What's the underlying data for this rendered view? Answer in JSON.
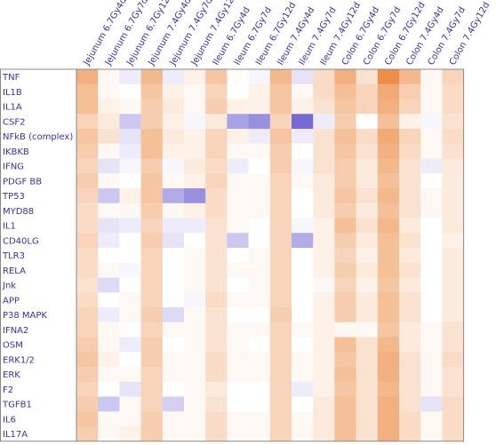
{
  "chart_data": {
    "type": "heatmap",
    "columns": [
      "Jejunum 6.7Gy4d",
      "Jejunum 6.7Gy7d",
      "Jejunum 6.7Gy12d",
      "Jejunum 7.4Gy4d",
      "Jejunum 7.4Gy7d",
      "Jejunum 7.4Gy12d",
      "Ileum 6.7Gy4d",
      "Ileum 6.7Gy7d",
      "Ileum 6.7Gy12d",
      "Ileum 7.4Gy4d",
      "Ileum 7.4Gy7d",
      "Ileum 7.4Gy12d",
      "Colon 6.7Gy4d",
      "Colon 6.7Gy7d",
      "Colon 6.7Gy12d",
      "Colon 7.4Gy4d",
      "Colon 7.4Gy7d",
      "Colon 7.4Gy12d"
    ],
    "rows": [
      "TNF",
      "IL1B",
      "IL1A",
      "CSF2",
      "NFkB (complex)",
      "IKBKB",
      "IFNG",
      "PDGF BB",
      "TP53",
      "MYD88",
      "IL1",
      "CD40LG",
      "TLR3",
      "RELA",
      "Jnk",
      "APP",
      "P38 MAPK",
      "IFNA2",
      "OSM",
      "ERK1/2",
      "ERK",
      "F2",
      "TGFB1",
      "IL6",
      "IL17A"
    ],
    "values": [
      [
        0.55,
        0.05,
        -0.1,
        0.5,
        -0.1,
        0.1,
        0.4,
        0.02,
        -0.05,
        0.5,
        -0.15,
        0.25,
        0.55,
        0.2,
        0.8,
        0.5,
        0.05,
        0.3
      ],
      [
        0.45,
        0.05,
        0,
        0.4,
        0.1,
        0.05,
        0.3,
        0,
        0.1,
        0.4,
        0.05,
        0.25,
        0.45,
        0.3,
        0.6,
        0.35,
        0.05,
        0.25
      ],
      [
        0.45,
        0.1,
        0.05,
        0.35,
        0.15,
        0.05,
        0.35,
        0.1,
        0.1,
        0.4,
        0.1,
        0.2,
        0.4,
        0.3,
        0.55,
        0.3,
        0.05,
        0.25
      ],
      [
        0.3,
        0.15,
        -0.3,
        0.35,
        0.1,
        -0.05,
        0.15,
        -0.5,
        -0.6,
        0.3,
        -0.8,
        -0.1,
        0.35,
        0,
        0.45,
        0.1,
        -0.05,
        0.2
      ],
      [
        0.4,
        0.2,
        -0.15,
        0.45,
        0.15,
        0.1,
        0.3,
        0.1,
        -0.1,
        0.4,
        -0.1,
        0.2,
        0.45,
        0.25,
        0.6,
        0.3,
        0.05,
        0.25
      ],
      [
        0.35,
        0.05,
        -0.1,
        0.45,
        0.1,
        0.1,
        0.3,
        0.05,
        0.05,
        0.35,
        0,
        0.2,
        0.4,
        0.2,
        0.55,
        0.25,
        0.05,
        0.2
      ],
      [
        0.3,
        -0.15,
        -0.05,
        0.35,
        -0.05,
        0.15,
        0.25,
        -0.1,
        0,
        0.35,
        -0.05,
        0.2,
        0.35,
        0.15,
        0.5,
        0.2,
        -0.1,
        0.15
      ],
      [
        0.35,
        0.05,
        0,
        0.4,
        0.05,
        0.1,
        0.3,
        0.05,
        0.05,
        0.3,
        0.05,
        0.15,
        0.35,
        0.15,
        0.45,
        0.2,
        0,
        0.15
      ],
      [
        0.3,
        -0.3,
        0.1,
        0.4,
        -0.45,
        -0.6,
        0.25,
        0.05,
        0.05,
        0.3,
        0,
        0.15,
        0.4,
        0.2,
        0.5,
        0.2,
        0.05,
        0.15
      ],
      [
        0.25,
        0.05,
        0.05,
        0.35,
        0.05,
        0.1,
        0.25,
        0.05,
        0.05,
        0.3,
        0,
        0.15,
        0.35,
        0.15,
        0.45,
        0.2,
        0.05,
        0.15
      ],
      [
        0.25,
        -0.15,
        -0.1,
        0.3,
        -0.1,
        -0.1,
        0.2,
        0.05,
        0,
        0.3,
        -0.05,
        0.1,
        0.45,
        0.2,
        0.5,
        0.15,
        0,
        0.15
      ],
      [
        0.3,
        -0.1,
        0,
        0.35,
        -0.15,
        0,
        0.2,
        -0.3,
        0,
        0.3,
        -0.45,
        0.1,
        0.35,
        0.15,
        0.45,
        0.2,
        0,
        0.1
      ],
      [
        0.25,
        0,
        0,
        0.3,
        0,
        0.05,
        0.2,
        0,
        0.05,
        0.3,
        0,
        0.1,
        0.3,
        0.1,
        0.45,
        0.15,
        0,
        0.15
      ],
      [
        0.25,
        0.05,
        -0.05,
        0.3,
        0,
        0.05,
        0.2,
        0.05,
        0.05,
        0.3,
        0,
        0.1,
        0.35,
        0.15,
        0.45,
        0.2,
        0,
        0.15
      ],
      [
        0.2,
        -0.2,
        0,
        0.3,
        0,
        0.05,
        0.2,
        0,
        0.05,
        0.3,
        0,
        0.05,
        0.3,
        0.1,
        0.4,
        0.15,
        0,
        0.15
      ],
      [
        0.25,
        0,
        0.05,
        0.3,
        0,
        -0.05,
        0.25,
        0.05,
        0.05,
        0.3,
        0,
        0.1,
        0.35,
        0.15,
        0.45,
        0.2,
        0,
        0.15
      ],
      [
        0.3,
        -0.1,
        0.05,
        0.35,
        -0.2,
        0.05,
        0.2,
        0,
        0,
        0.35,
        0,
        0.1,
        0.35,
        0.15,
        0.45,
        0.2,
        0,
        0.15
      ],
      [
        0.3,
        0.05,
        0,
        0.3,
        0.05,
        0.05,
        0.2,
        0.05,
        0.05,
        0.3,
        0.05,
        0.1,
        0.05,
        0.05,
        0.4,
        0.15,
        0.05,
        0.2
      ],
      [
        0.35,
        0.05,
        -0.1,
        0.35,
        0,
        0.05,
        0.2,
        0.05,
        0,
        0.3,
        0,
        0.1,
        0.45,
        0.2,
        0.5,
        0.15,
        0.05,
        0.2
      ],
      [
        0.4,
        0.1,
        0,
        0.35,
        0.05,
        0.05,
        0.25,
        0.05,
        0.05,
        0.3,
        0.05,
        0.1,
        0.4,
        0.2,
        0.55,
        0.2,
        0.05,
        0.25
      ],
      [
        0.35,
        0.05,
        0.05,
        0.3,
        0.05,
        0.05,
        0.25,
        0.05,
        0.05,
        0.3,
        0.05,
        0.1,
        0.45,
        0.2,
        0.55,
        0.2,
        0.05,
        0.2
      ],
      [
        0.3,
        0,
        -0.15,
        0.3,
        0,
        0.05,
        0.15,
        0,
        0,
        0.3,
        -0.1,
        0.1,
        0.4,
        0.2,
        0.5,
        0.2,
        0.05,
        0.2
      ],
      [
        0.35,
        -0.3,
        0.05,
        0.3,
        -0.25,
        0.05,
        0.2,
        0,
        0,
        0.3,
        0,
        0.15,
        0.45,
        0.2,
        0.55,
        0.2,
        -0.15,
        0.25
      ],
      [
        0.4,
        0.05,
        0.05,
        0.35,
        0.05,
        0.05,
        0.25,
        0.05,
        0.05,
        0.3,
        0.05,
        0.15,
        0.45,
        0.2,
        0.55,
        0.25,
        0.05,
        0.25
      ],
      [
        0.35,
        0.05,
        0.1,
        0.35,
        0.05,
        0.05,
        0.25,
        0.05,
        0.05,
        0.3,
        0.05,
        0.15,
        0.45,
        0.2,
        0.55,
        0.25,
        0.05,
        0.25
      ]
    ],
    "vmin": -1,
    "vmax": 1,
    "colors": {
      "positive": "#e8701a",
      "negative": "#5544cc",
      "neutral": "#ffffff",
      "label": "#3333aa",
      "grid": "#888888"
    },
    "legend": "none"
  }
}
